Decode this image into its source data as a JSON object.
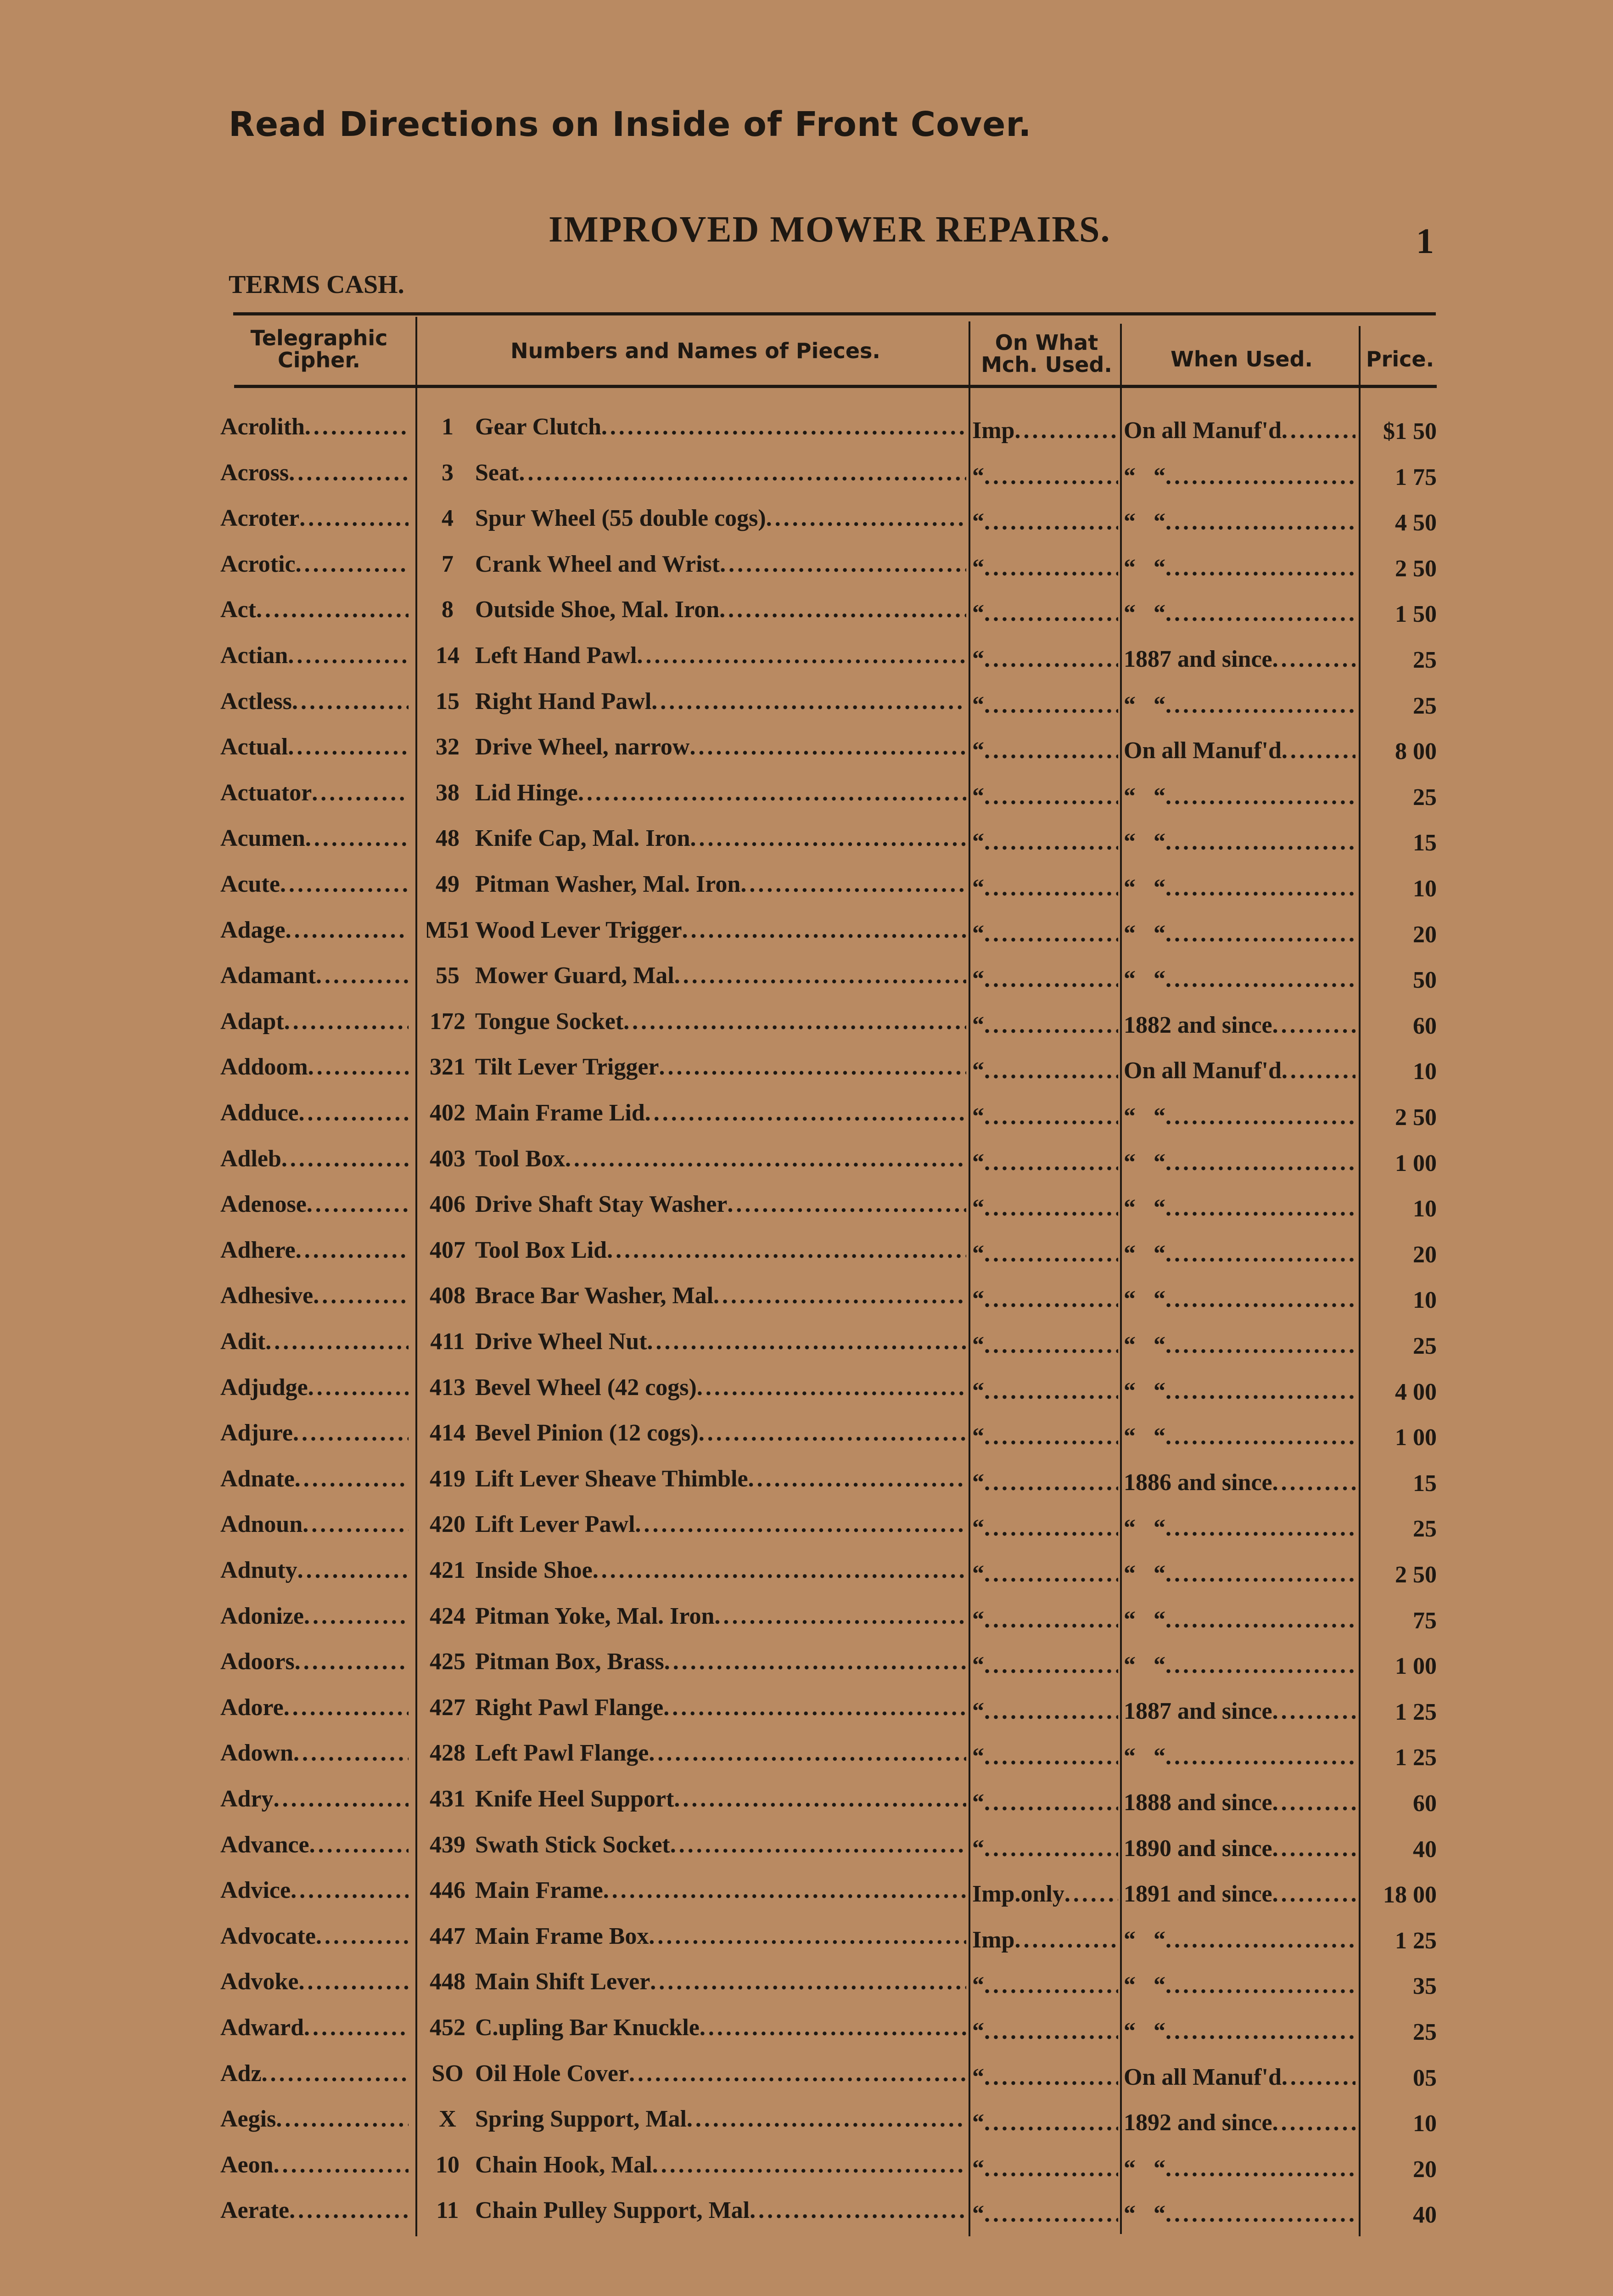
{
  "notice": "Read Directions on Inside of Front Cover.",
  "title": "IMPROVED MOWER REPAIRS.",
  "page_number": "1",
  "terms": "TERMS CASH.",
  "columns": {
    "cipher": "Telegraphic Cipher.",
    "pieces": "Numbers and Names of Pieces.",
    "machine": "On What Mch. Used.",
    "when": "When Used.",
    "price": "Price."
  },
  "ditto": "“",
  "rows": [
    [
      "Acrolith",
      "1",
      "Gear Clutch",
      "Imp",
      "On all Manuf'd",
      "$1 50"
    ],
    [
      "Across",
      "3",
      "Seat",
      "“",
      "“   “",
      "1 75"
    ],
    [
      "Acroter",
      "4",
      "Spur Wheel (55 double cogs)",
      "“",
      "“   “",
      "4 50"
    ],
    [
      "Acrotic",
      "7",
      "Crank Wheel and Wrist",
      "“",
      "“   “",
      "2 50"
    ],
    [
      "Act",
      "8",
      "Outside Shoe, Mal. Iron",
      "“",
      "“   “",
      "1 50"
    ],
    [
      "Actian",
      "14",
      "Left Hand Pawl",
      "“",
      "1887 and since",
      "25"
    ],
    [
      "Actless",
      "15",
      "Right Hand Pawl",
      "“",
      "“   “",
      "25"
    ],
    [
      "Actual",
      "32",
      "Drive Wheel, narrow",
      "“",
      "On all Manuf'd",
      "8 00"
    ],
    [
      "Actuator",
      "38",
      "Lid Hinge",
      "“",
      "“   “",
      "25"
    ],
    [
      "Acumen",
      "48",
      "Knife Cap, Mal. Iron",
      "“",
      "“   “",
      "15"
    ],
    [
      "Acute",
      "49",
      "Pitman Washer, Mal. Iron",
      "“",
      "“   “",
      "10"
    ],
    [
      "Adage",
      "M51",
      "Wood Lever Trigger",
      "“",
      "“   “",
      "20"
    ],
    [
      "Adamant",
      "55",
      "Mower Guard, Mal",
      "“",
      "“   “",
      "50"
    ],
    [
      "Adapt",
      "172",
      "Tongue Socket",
      "“",
      "1882 and since",
      "60"
    ],
    [
      "Addoom",
      "321",
      "Tilt Lever Trigger",
      "“",
      "On all Manuf'd",
      "10"
    ],
    [
      "Adduce",
      "402",
      "Main Frame Lid",
      "“",
      "“   “",
      "2 50"
    ],
    [
      "Adleb",
      "403",
      "Tool Box",
      "“",
      "“   “",
      "1 00"
    ],
    [
      "Adenose",
      "406",
      "Drive Shaft Stay Washer",
      "“",
      "“   “",
      "10"
    ],
    [
      "Adhere",
      "407",
      "Tool Box Lid",
      "“",
      "“   “",
      "20"
    ],
    [
      "Adhesive",
      "408",
      "Brace Bar Washer, Mal",
      "“",
      "“   “",
      "10"
    ],
    [
      "Adit",
      "411",
      "Drive Wheel Nut",
      "“",
      "“   “",
      "25"
    ],
    [
      "Adjudge",
      "413",
      "Bevel Wheel (42 cogs)",
      "“",
      "“   “",
      "4 00"
    ],
    [
      "Adjure",
      "414",
      "Bevel Pinion (12 cogs)",
      "“",
      "“   “",
      "1 00"
    ],
    [
      "Adnate",
      "419",
      "Lift Lever Sheave Thimble",
      "“",
      "1886 and since",
      "15"
    ],
    [
      "Adnoun",
      "420",
      "Lift Lever Pawl",
      "“",
      "“   “",
      "25"
    ],
    [
      "Adnuty",
      "421",
      "Inside Shoe",
      "“",
      "“   “",
      "2 50"
    ],
    [
      "Adonize",
      "424",
      "Pitman Yoke, Mal. Iron",
      "“",
      "“   “",
      "75"
    ],
    [
      "Adoors",
      "425",
      "Pitman Box, Brass",
      "“",
      "“   “",
      "1 00"
    ],
    [
      "Adore",
      "427",
      "Right Pawl Flange",
      "“",
      "1887 and since",
      "1 25"
    ],
    [
      "Adown",
      "428",
      "Left Pawl Flange",
      "“",
      "“   “",
      "1 25"
    ],
    [
      "Adry",
      "431",
      "Knife Heel Support",
      "“",
      "1888 and since",
      "60"
    ],
    [
      "Advance",
      "439",
      "Swath Stick Socket",
      "“",
      "1890 and since",
      "40"
    ],
    [
      "Advice",
      "446",
      "Main Frame",
      "Imp.only",
      "1891 and since",
      "18 00"
    ],
    [
      "Advocate",
      "447",
      "Main Frame Box",
      "Imp",
      "“   “",
      "1 25"
    ],
    [
      "Advoke",
      "448",
      "Main Shift Lever",
      "“",
      "“   “",
      "35"
    ],
    [
      "Adward",
      "452",
      "C.upling Bar Knuckle",
      "“",
      "“   “",
      "25"
    ],
    [
      "Adz",
      "SO",
      "Oil Hole Cover",
      "“",
      "On all Manuf'd",
      "05"
    ],
    [
      "Aegis",
      "X",
      "Spring Support, Mal",
      "“",
      "1892 and since",
      "10"
    ],
    [
      "Aeon",
      "10",
      "Chain Hook, Mal",
      "“",
      "“   “",
      "20"
    ],
    [
      "Aerate",
      "11",
      "Chain Pulley Support, Mal",
      "“",
      "“   “",
      "40"
    ]
  ]
}
